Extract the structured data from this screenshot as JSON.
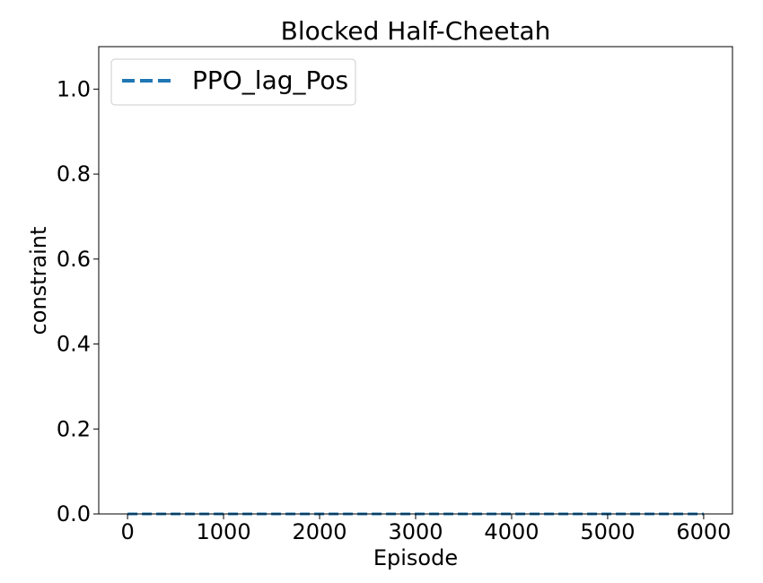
{
  "chart_data": {
    "type": "line",
    "title": "Blocked Half-Cheetah",
    "xlabel": "Episode",
    "ylabel": "constraint",
    "xlim": [
      -300,
      6300
    ],
    "ylim": [
      0,
      1.1
    ],
    "x_ticks": [
      0,
      1000,
      2000,
      3000,
      4000,
      5000,
      6000
    ],
    "x_tick_labels": [
      "0",
      "1000",
      "2000",
      "3000",
      "4000",
      "5000",
      "6000"
    ],
    "y_ticks": [
      0.0,
      0.2,
      0.4,
      0.6,
      0.8,
      1.0
    ],
    "y_tick_labels": [
      "0.0",
      "0.2",
      "0.4",
      "0.6",
      "0.8",
      "1.0"
    ],
    "grid": false,
    "legend_position": "top-left",
    "series": [
      {
        "name": "PPO_lag_Pos",
        "color": "#1f77b4",
        "line_style": "dashed",
        "x": [
          0,
          1000,
          2000,
          3000,
          4000,
          5000,
          6000
        ],
        "y": [
          0,
          0,
          0,
          0,
          0,
          0,
          0
        ]
      }
    ]
  }
}
